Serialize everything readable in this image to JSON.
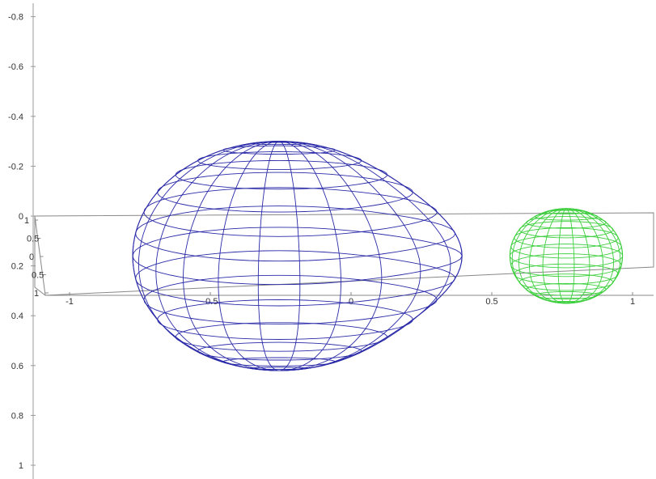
{
  "chart_data": {
    "type": "wireframe-3d",
    "grid": false,
    "legend": "none",
    "axes": {
      "vertical": {
        "ticks": [
          -0.8,
          -0.6,
          -0.4,
          -0.2,
          0,
          0.2,
          0.4,
          0.6,
          0.8,
          1
        ],
        "tick_labels": [
          "-0.8",
          "-0.6",
          "-0.4",
          "-0.2",
          "0",
          "0.2",
          "0.4",
          "0.6",
          "0.8",
          "1"
        ],
        "range": [
          -0.85,
          1.0
        ]
      },
      "horizontal": {
        "ticks": [
          -1,
          -0.5,
          0,
          0.5,
          1
        ],
        "tick_labels": [
          "-1",
          "-0.5",
          "0",
          "0.5",
          "1"
        ],
        "range": [
          -1.0,
          1.0
        ]
      },
      "depth": {
        "tick_labels": [
          "1",
          "0.5",
          "0",
          "0.5",
          "1"
        ]
      }
    },
    "objects": [
      {
        "shape": "teardrop",
        "color": "#2a2aa8",
        "center_x": -0.27,
        "center_y": 0.16,
        "radius_x": 0.52,
        "radius_y": 0.46,
        "neck_tip_x": 0.38,
        "meridians": 22,
        "parallels": 16
      },
      {
        "shape": "ellipsoid",
        "color": "#3ecf3e",
        "center_x": 0.75,
        "center_y": 0.16,
        "radius_x": 0.2,
        "radius_y": 0.19,
        "meridians": 22,
        "parallels": 16
      }
    ]
  }
}
